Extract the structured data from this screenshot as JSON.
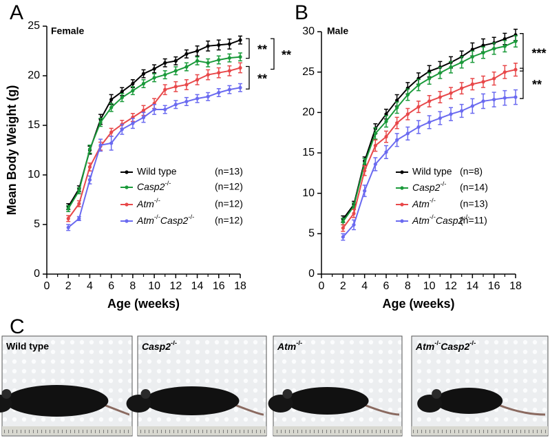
{
  "chart_data": [
    {
      "type": "line",
      "panel": "A",
      "title": "Female",
      "x_label": "Age (weeks)",
      "y_label": "Mean Body Weight (g)",
      "x": [
        2,
        3,
        4,
        5,
        6,
        7,
        8,
        9,
        10,
        11,
        12,
        13,
        14,
        15,
        16,
        17,
        18
      ],
      "xlim": [
        0,
        18
      ],
      "xticks": [
        0,
        2,
        4,
        6,
        8,
        10,
        12,
        14,
        16,
        18
      ],
      "ylim": [
        0,
        25
      ],
      "yticks": [
        0,
        5,
        10,
        15,
        20,
        25
      ],
      "annotations": [
        "**",
        "**",
        "**"
      ],
      "series": [
        {
          "name": "Wild type",
          "n": "(n=13)",
          "color": "#000000",
          "values": [
            6.8,
            8.6,
            12.5,
            15.6,
            17.6,
            18.4,
            19.2,
            20.2,
            20.7,
            21.3,
            21.5,
            22.2,
            22.5,
            23.0,
            23.1,
            23.2,
            23.6
          ],
          "errors": [
            0.3,
            0.3,
            0.4,
            0.5,
            0.5,
            0.4,
            0.4,
            0.4,
            0.4,
            0.4,
            0.4,
            0.4,
            0.5,
            0.5,
            0.5,
            0.5,
            0.4
          ]
        },
        {
          "name": "Casp2-/-",
          "n": "(n=12)",
          "color": "#1a9a3a",
          "values": [
            6.6,
            8.4,
            12.6,
            15.3,
            16.8,
            17.8,
            18.5,
            19.2,
            19.8,
            20.1,
            20.5,
            20.9,
            21.5,
            21.3,
            21.6,
            21.8,
            21.9
          ],
          "errors": [
            0.3,
            0.3,
            0.4,
            0.4,
            0.4,
            0.4,
            0.4,
            0.4,
            0.4,
            0.4,
            0.4,
            0.4,
            0.4,
            0.4,
            0.4,
            0.4,
            0.4
          ]
        },
        {
          "name": "Atm-/-",
          "n": "(n=12)",
          "color": "#e8484a",
          "values": [
            5.6,
            7.1,
            10.8,
            12.9,
            14.3,
            15.1,
            15.8,
            16.5,
            17.2,
            18.6,
            18.9,
            19.1,
            19.6,
            20.1,
            20.3,
            20.5,
            20.8
          ],
          "errors": [
            0.3,
            0.3,
            0.4,
            0.4,
            0.4,
            0.4,
            0.4,
            0.5,
            0.5,
            0.5,
            0.5,
            0.5,
            0.5,
            0.5,
            0.5,
            0.5,
            0.5
          ]
        },
        {
          "name": "Atm-/-Casp2-/-",
          "n": "(n=12)",
          "color": "#6a6af0",
          "values": [
            4.7,
            5.6,
            9.5,
            13.0,
            13.2,
            14.6,
            15.2,
            15.8,
            16.6,
            16.6,
            17.1,
            17.4,
            17.7,
            17.9,
            18.3,
            18.6,
            18.8
          ],
          "errors": [
            0.3,
            0.2,
            0.4,
            0.6,
            0.7,
            0.5,
            0.5,
            0.5,
            0.5,
            0.4,
            0.4,
            0.4,
            0.4,
            0.4,
            0.4,
            0.4,
            0.4
          ]
        }
      ]
    },
    {
      "type": "line",
      "panel": "B",
      "title": "Male",
      "x_label": "Age (weeks)",
      "x": [
        2,
        3,
        4,
        5,
        6,
        7,
        8,
        9,
        10,
        11,
        12,
        13,
        14,
        15,
        16,
        17,
        18
      ],
      "xlim": [
        0,
        18
      ],
      "xticks": [
        0,
        2,
        4,
        6,
        8,
        10,
        12,
        14,
        16,
        18
      ],
      "ylim": [
        0,
        30
      ],
      "yticks": [
        0,
        5,
        10,
        15,
        20,
        25,
        30
      ],
      "annotations": [
        "***",
        "**"
      ],
      "series": [
        {
          "name": "Wild type",
          "n": "(n=8)",
          "color": "#000000",
          "values": [
            6.8,
            8.6,
            14.0,
            18.0,
            19.8,
            21.5,
            23.0,
            24.2,
            25.1,
            25.6,
            26.2,
            26.9,
            27.8,
            28.3,
            28.6,
            29.1,
            29.6
          ],
          "errors": [
            0.4,
            0.4,
            0.5,
            0.6,
            0.6,
            0.7,
            0.7,
            0.7,
            0.7,
            0.7,
            0.7,
            0.7,
            0.8,
            0.8,
            0.7,
            0.7,
            0.7
          ]
        },
        {
          "name": "Casp2-/-",
          "n": "(n=14)",
          "color": "#1a9a3a",
          "values": [
            6.5,
            8.4,
            13.7,
            17.4,
            18.9,
            20.6,
            22.2,
            23.4,
            24.2,
            24.9,
            25.6,
            26.2,
            26.9,
            27.4,
            27.9,
            28.2,
            28.8
          ],
          "errors": [
            0.4,
            0.4,
            0.6,
            0.7,
            0.7,
            0.7,
            0.7,
            0.7,
            0.7,
            0.7,
            0.7,
            0.7,
            0.7,
            0.7,
            0.7,
            0.7,
            0.7
          ]
        },
        {
          "name": "Atm-/-",
          "n": "(n=13)",
          "color": "#e8484a",
          "values": [
            5.7,
            7.5,
            12.8,
            15.9,
            17.0,
            18.7,
            19.8,
            20.7,
            21.4,
            21.9,
            22.4,
            23.0,
            23.5,
            23.8,
            24.2,
            25.0,
            25.3
          ],
          "errors": [
            0.4,
            0.5,
            0.6,
            0.7,
            0.7,
            0.7,
            0.7,
            0.7,
            0.7,
            0.7,
            0.7,
            0.7,
            0.7,
            0.7,
            0.8,
            0.8,
            0.8
          ]
        },
        {
          "name": "Atm-/-Casp2-/-",
          "n": "(n=11)",
          "color": "#6a6af0",
          "values": [
            4.6,
            6.1,
            10.3,
            13.6,
            15.1,
            16.6,
            17.4,
            18.2,
            18.8,
            19.3,
            19.8,
            20.2,
            20.8,
            21.4,
            21.6,
            21.8,
            21.9
          ],
          "errors": [
            0.4,
            0.6,
            0.7,
            0.8,
            0.8,
            0.8,
            0.8,
            0.8,
            0.8,
            0.8,
            0.8,
            0.8,
            0.9,
            0.9,
            0.9,
            0.9,
            0.9
          ]
        }
      ]
    }
  ],
  "photos": {
    "panel": "C",
    "labels": [
      "Wild type",
      "Casp2-/-",
      "Atm-/-",
      "Atm-/-Casp2-/-"
    ]
  }
}
